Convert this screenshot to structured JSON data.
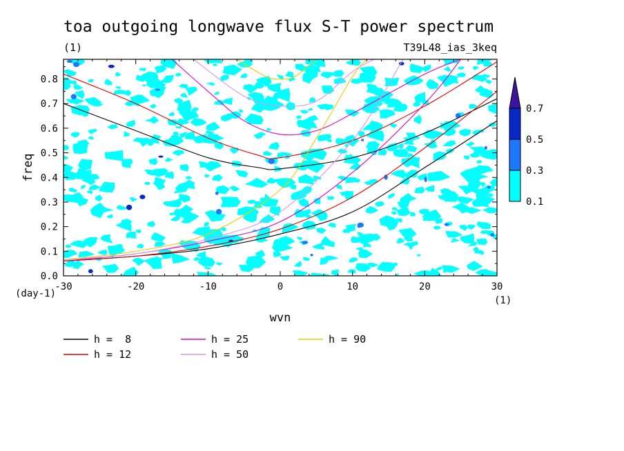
{
  "chart_data": {
    "type": "contour",
    "title": "toa outgoing longwave flux S-T power spectrum",
    "subtitle_left": "(1)",
    "subtitle_right": "T39L48_ias_3keq",
    "xlabel": "wvn",
    "ylabel": "freq",
    "x_unit": "(1)",
    "y_unit": "(day-1)",
    "xlim": [
      -30,
      30
    ],
    "ylim": [
      0,
      0.88
    ],
    "xticks": [
      -30,
      -20,
      -10,
      0,
      10,
      20,
      30
    ],
    "xtick_labels": [
      "-30",
      "-20",
      "-10",
      "0",
      "10",
      "20",
      "30"
    ],
    "yticks": [
      0,
      0.1,
      0.2,
      0.3,
      0.4,
      0.5,
      0.6,
      0.7,
      0.8
    ],
    "ytick_labels": [
      "0.0",
      "0.1",
      "0.2",
      "0.3",
      "0.4",
      "0.5",
      "0.6",
      "0.7",
      "0.8"
    ],
    "contour_levels": [
      0.1,
      0.3,
      0.5,
      0.7
    ],
    "colorbar": {
      "labels": [
        "0.1",
        "0.3",
        "0.5",
        "0.7"
      ],
      "colors": [
        "#00FFFF",
        "#1E78FF",
        "#0A28C8",
        "#3C14A0"
      ]
    },
    "dispersion_curves": [
      {
        "label": "h =  8",
        "h": 8,
        "color": "#000000",
        "kelvin": [
          [
            -30,
            0.06
          ],
          [
            -20,
            0.08
          ],
          [
            -10,
            0.11
          ],
          [
            0,
            0.17
          ],
          [
            10,
            0.26
          ],
          [
            20,
            0.44
          ],
          [
            30,
            0.63
          ]
        ],
        "gravity": [
          [
            -30,
            0.7
          ],
          [
            -20,
            0.59
          ],
          [
            -10,
            0.48
          ],
          [
            -3,
            0.44
          ],
          [
            0,
            0.435
          ],
          [
            10,
            0.48
          ],
          [
            20,
            0.58
          ],
          [
            30,
            0.72
          ]
        ]
      },
      {
        "label": "h = 12",
        "h": 12,
        "color": "#E00000",
        "kelvin": [
          [
            -30,
            0.06
          ],
          [
            -20,
            0.08
          ],
          [
            -10,
            0.12
          ],
          [
            0,
            0.19
          ],
          [
            10,
            0.32
          ],
          [
            20,
            0.52
          ],
          [
            30,
            0.75
          ]
        ],
        "gravity": [
          [
            -30,
            0.82
          ],
          [
            -20,
            0.7
          ],
          [
            -10,
            0.56
          ],
          [
            -3,
            0.49
          ],
          [
            0,
            0.48
          ],
          [
            10,
            0.55
          ],
          [
            20,
            0.69
          ],
          [
            30,
            0.87
          ]
        ]
      },
      {
        "label": "h = 25",
        "h": 25,
        "color": "#E000C0",
        "kelvin": [
          [
            -30,
            0.06
          ],
          [
            -20,
            0.09
          ],
          [
            -10,
            0.14
          ],
          [
            0,
            0.22
          ],
          [
            10,
            0.42
          ],
          [
            20,
            0.7
          ],
          [
            25,
            0.88
          ]
        ],
        "gravity": [
          [
            -15,
            0.88
          ],
          [
            -10,
            0.75
          ],
          [
            -5,
            0.63
          ],
          [
            0,
            0.575
          ],
          [
            5,
            0.59
          ],
          [
            10,
            0.66
          ],
          [
            20,
            0.82
          ],
          [
            25,
            0.88
          ]
        ]
      },
      {
        "label": "h = 50",
        "h": 50,
        "color": "#DC96E6",
        "kelvin": [
          [
            -30,
            0.065
          ],
          [
            -20,
            0.09
          ],
          [
            -10,
            0.15
          ],
          [
            0,
            0.26
          ],
          [
            10,
            0.55
          ],
          [
            17,
            0.88
          ]
        ],
        "gravity": [
          [
            -12,
            0.88
          ],
          [
            -5,
            0.73
          ],
          [
            0,
            0.69
          ],
          [
            5,
            0.71
          ],
          [
            10,
            0.83
          ],
          [
            13,
            0.88
          ]
        ]
      },
      {
        "label": "h = 90",
        "h": 90,
        "color": "#F0C800",
        "kelvin": [
          [
            -30,
            0.065
          ],
          [
            -20,
            0.1
          ],
          [
            -10,
            0.17
          ],
          [
            0,
            0.35
          ],
          [
            5,
            0.56
          ],
          [
            10,
            0.81
          ],
          [
            12,
            0.88
          ]
        ],
        "gravity": [
          [
            -6,
            0.88
          ],
          [
            -2,
            0.81
          ],
          [
            0,
            0.8
          ],
          [
            2,
            0.81
          ],
          [
            5,
            0.88
          ]
        ]
      }
    ],
    "legend_placement": "bottom-left",
    "grid": false
  }
}
